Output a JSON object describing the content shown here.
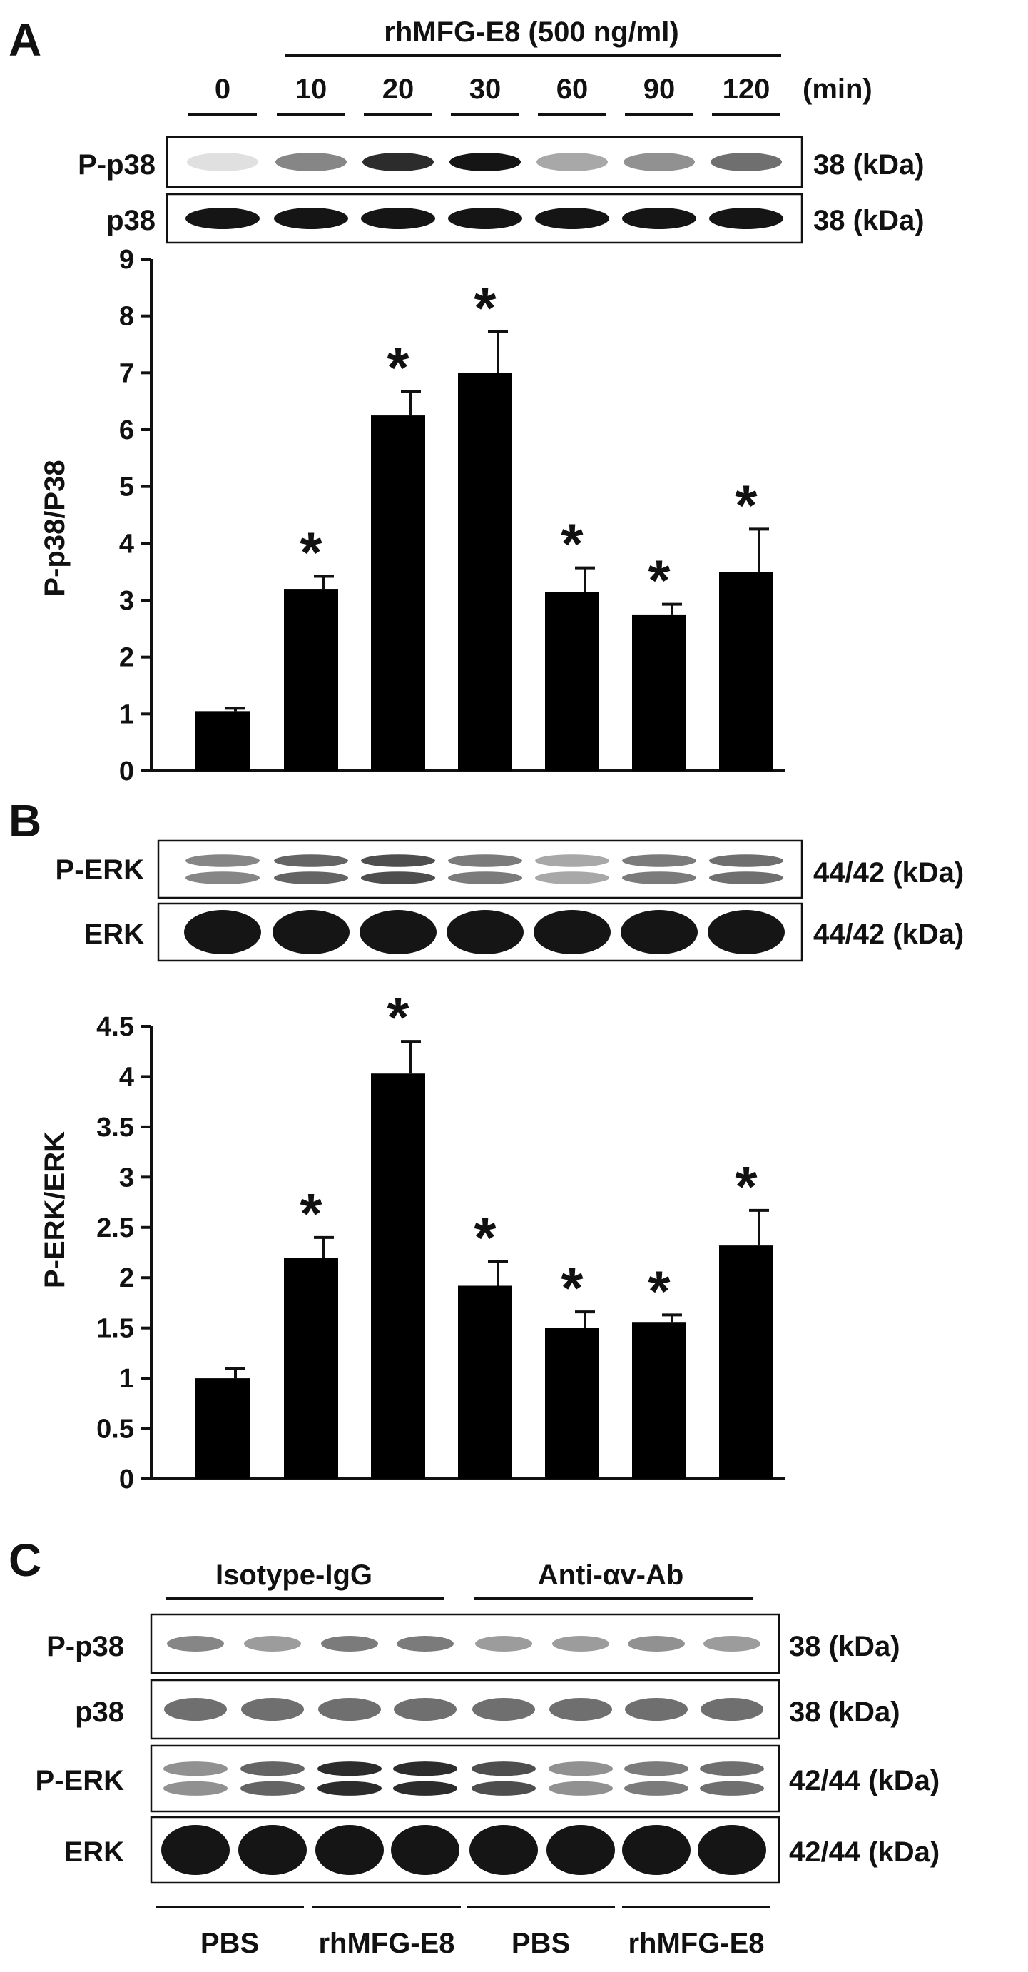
{
  "panels": {
    "A": {
      "letter": "A",
      "treatment": "rhMFG-E8 (500 ng/ml)",
      "time_unit": "(min)",
      "lane_labels": [
        "0",
        "10",
        "20",
        "30",
        "60",
        "90",
        "120"
      ],
      "blots": [
        {
          "label": "P-p38",
          "size": "38 (kDa)",
          "intensity": [
            0.05,
            0.45,
            0.85,
            0.95,
            0.3,
            0.4,
            0.55
          ]
        },
        {
          "label": "p38",
          "size": "38 (kDa)",
          "intensity": [
            0.95,
            0.95,
            0.95,
            0.95,
            0.95,
            0.95,
            0.95
          ]
        }
      ]
    },
    "B": {
      "letter": "B",
      "blots": [
        {
          "label": "P-ERK",
          "size": "44/42 (kDa)",
          "intensity": [
            0.45,
            0.6,
            0.7,
            0.5,
            0.3,
            0.5,
            0.55
          ]
        },
        {
          "label": "ERK",
          "size": "44/42 (kDa)",
          "intensity": [
            0.95,
            0.95,
            0.95,
            0.95,
            0.95,
            0.95,
            0.95
          ]
        }
      ]
    },
    "C": {
      "letter": "C",
      "groups": [
        "Isotype-IgG",
        "Anti-αv-Ab"
      ],
      "treatments": [
        "PBS",
        "rhMFG-E8",
        "PBS",
        "rhMFG-E8"
      ],
      "blots": [
        {
          "label": "P-p38",
          "size": "38  (kDa)",
          "intensity": [
            0.45,
            0.35,
            0.5,
            0.5,
            0.35,
            0.35,
            0.4,
            0.35
          ]
        },
        {
          "label": "p38",
          "size": "38  (kDa)",
          "intensity": [
            0.55,
            0.55,
            0.55,
            0.55,
            0.55,
            0.55,
            0.55,
            0.55
          ]
        },
        {
          "label": "P-ERK",
          "size": "42/44  (kDa)",
          "intensity": [
            0.4,
            0.6,
            0.85,
            0.85,
            0.7,
            0.4,
            0.5,
            0.55
          ]
        },
        {
          "label": "ERK",
          "size": "42/44  (kDa)",
          "intensity": [
            0.95,
            0.95,
            0.95,
            0.95,
            0.95,
            0.95,
            0.95,
            0.95
          ]
        }
      ]
    }
  },
  "chart_data": [
    {
      "type": "bar",
      "panel": "A",
      "categories": [
        "0",
        "10",
        "20",
        "30",
        "60",
        "90",
        "120"
      ],
      "values": [
        1.05,
        3.2,
        6.25,
        7.0,
        3.15,
        2.75,
        3.5
      ],
      "errors": [
        0.05,
        0.22,
        0.42,
        0.72,
        0.42,
        0.18,
        0.75
      ],
      "significant": [
        false,
        true,
        true,
        true,
        true,
        true,
        true
      ],
      "ylabel": "P-p38/P38",
      "ylim": [
        0,
        9
      ],
      "yticks": [
        "0",
        "1",
        "2",
        "3",
        "4",
        "5",
        "6",
        "7",
        "8",
        "9"
      ],
      "significance_marker": "*",
      "bar_color": "#000000"
    },
    {
      "type": "bar",
      "panel": "B",
      "categories": [
        "0",
        "10",
        "20",
        "30",
        "60",
        "90",
        "120"
      ],
      "values": [
        1.0,
        2.2,
        4.03,
        1.92,
        1.5,
        1.56,
        2.32
      ],
      "errors": [
        0.1,
        0.2,
        0.32,
        0.24,
        0.16,
        0.07,
        0.35
      ],
      "significant": [
        false,
        true,
        true,
        true,
        true,
        true,
        true
      ],
      "ylabel": "P-ERK/ERK",
      "ylim": [
        0,
        4.5
      ],
      "yticks": [
        "0",
        "0.5",
        "1",
        "1.5",
        "2",
        "2.5",
        "3",
        "3.5",
        "4",
        "4.5"
      ],
      "significance_marker": "*",
      "bar_color": "#000000"
    }
  ]
}
